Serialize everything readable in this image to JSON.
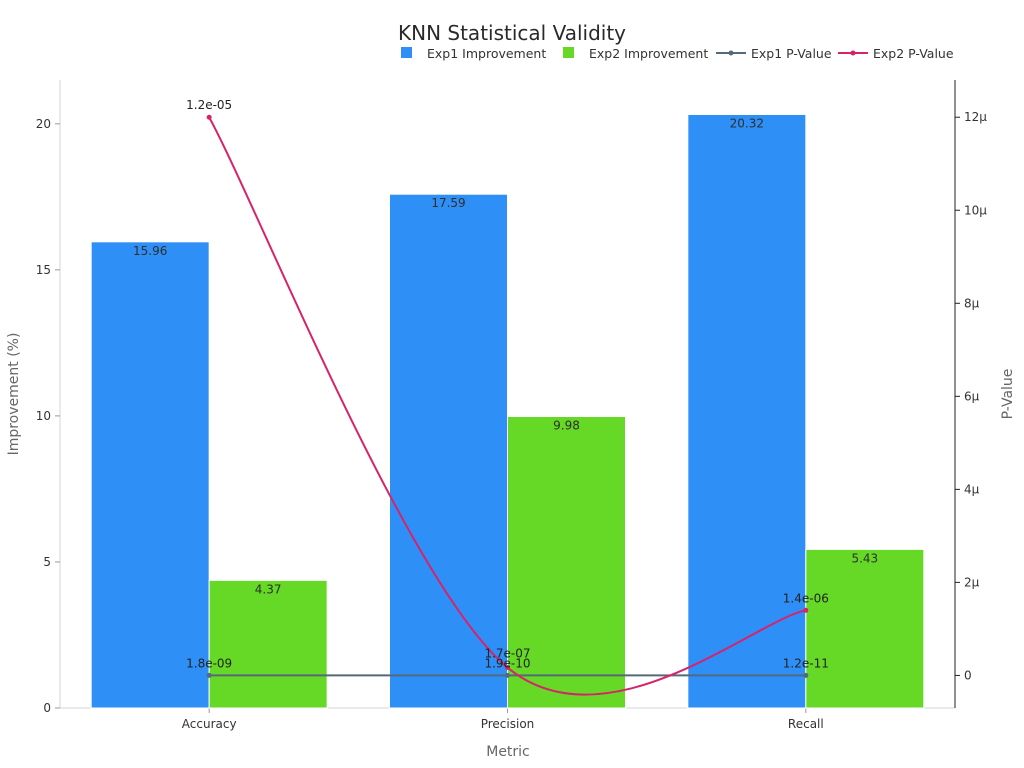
{
  "chart_data": {
    "type": "bar",
    "title": "KNN Statistical Validity",
    "xlabel": "Metric",
    "ylabel": "Improvement (%)",
    "y2label": "P-Value",
    "categories": [
      "Accuracy",
      "Precision",
      "Recall"
    ],
    "ylim": [
      0,
      21.5
    ],
    "y2lim": [
      -7e-07,
      1.28e-05
    ],
    "yticks": [
      {
        "value": 0,
        "label": "0"
      },
      {
        "value": 5,
        "label": "5"
      },
      {
        "value": 10,
        "label": "10"
      },
      {
        "value": 15,
        "label": "15"
      },
      {
        "value": 20,
        "label": "20"
      }
    ],
    "y2ticks": [
      {
        "value": 0,
        "label": "0"
      },
      {
        "value": 2e-06,
        "label": "2μ"
      },
      {
        "value": 4e-06,
        "label": "4μ"
      },
      {
        "value": 6e-06,
        "label": "6μ"
      },
      {
        "value": 8e-06,
        "label": "8μ"
      },
      {
        "value": 1e-05,
        "label": "10μ"
      },
      {
        "value": 1.2e-05,
        "label": "12μ"
      }
    ],
    "bar_series": [
      {
        "name": "Exp1 Improvement",
        "color": "#2e8ff7",
        "values": [
          15.96,
          17.59,
          20.32
        ],
        "labels": [
          "15.96",
          "17.59",
          "20.32"
        ]
      },
      {
        "name": "Exp2 Improvement",
        "color": "#66d926",
        "values": [
          4.37,
          9.98,
          5.43
        ],
        "labels": [
          "4.37",
          "9.98",
          "5.43"
        ]
      }
    ],
    "line_series": [
      {
        "name": "Exp1 P-Value",
        "color": "#546a7b",
        "values": [
          1.8e-09,
          1.9e-10,
          1.2e-11
        ],
        "labels": [
          "1.8e-09",
          "1.9e-10",
          "1.2e-11"
        ]
      },
      {
        "name": "Exp2 P-Value",
        "color": "#d6246a",
        "values": [
          1.2e-05,
          1.7e-07,
          1.4e-06
        ],
        "labels": [
          "1.2e-05",
          "1.7e-07",
          "1.4e-06"
        ]
      }
    ],
    "legend_position": "top",
    "grid": false
  }
}
